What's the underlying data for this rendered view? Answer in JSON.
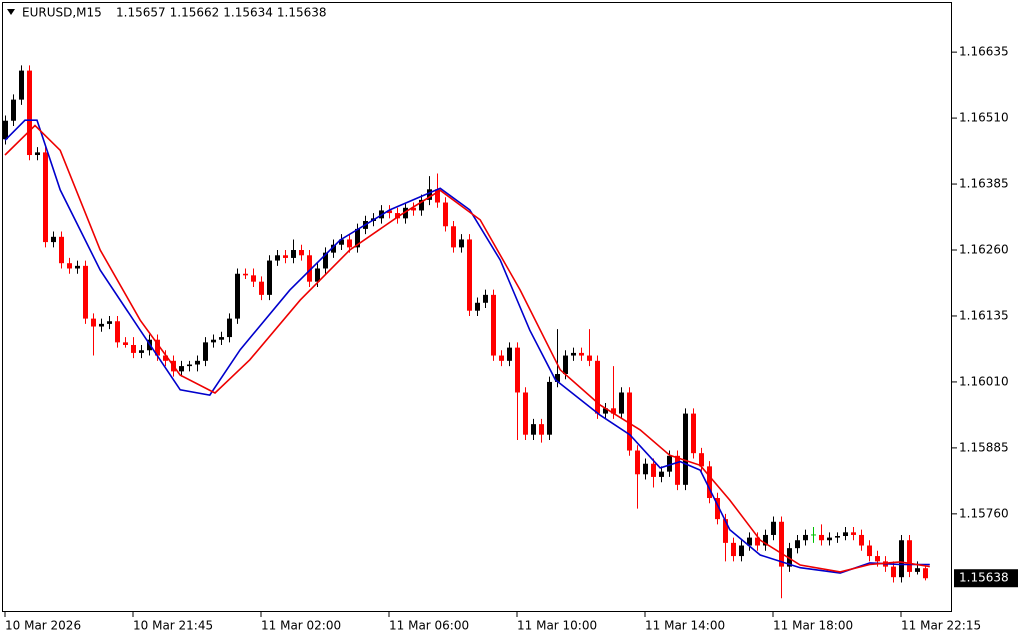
{
  "chart_data": {
    "type": "candlestick",
    "symbol": "EURUSD,M15",
    "up_color": "#000000",
    "down_color": "#ff0000",
    "doji_color": "#00c000",
    "last_price": 1.15638,
    "xlim": [
      -0.375,
      118.375
    ],
    "xticks": [
      {
        "value": 0,
        "label": "10 Mar 2026"
      },
      {
        "value": 16,
        "label": "10 Mar 21:45"
      },
      {
        "value": 32,
        "label": "11 Mar 02:00"
      },
      {
        "value": 48,
        "label": "11 Mar 06:00"
      },
      {
        "value": 64,
        "label": "11 Mar 10:00"
      },
      {
        "value": 80,
        "label": "11 Mar 14:00"
      },
      {
        "value": 96,
        "label": "11 Mar 18:00"
      },
      {
        "value": 112,
        "label": "11 Mar 22:15"
      }
    ],
    "ylim": [
      1.15574,
      1.1673
    ],
    "yticks": [
      1.16635,
      {
        "value": 1.1651,
        "label": "1.16510"
      },
      1.16385,
      {
        "value": 1.1626,
        "label": "1.16260"
      },
      1.16135,
      {
        "value": 1.1601,
        "label": "1.16010"
      },
      1.15885,
      {
        "value": 1.1576,
        "label": "1.15760"
      }
    ],
    "candles": [
      [
        1.1647,
        1.16515,
        1.1646,
        1.16505
      ],
      [
        1.16505,
        1.16555,
        1.16495,
        1.16545
      ],
      [
        1.16545,
        1.1661,
        1.16535,
        1.166
      ],
      [
        1.166,
        1.1661,
        1.1643,
        1.1644
      ],
      [
        1.1644,
        1.16455,
        1.1643,
        1.16445
      ],
      [
        1.16445,
        1.16455,
        1.16265,
        1.16275
      ],
      [
        1.16275,
        1.16295,
        1.16265,
        1.16285
      ],
      [
        1.16285,
        1.16295,
        1.16225,
        1.16235
      ],
      [
        1.16235,
        1.16245,
        1.16215,
        1.16225
      ],
      [
        1.16225,
        1.1624,
        1.16215,
        1.1623
      ],
      [
        1.1623,
        1.1624,
        1.1612,
        1.1613
      ],
      [
        1.1613,
        1.1614,
        1.1606,
        1.16115
      ],
      [
        1.16115,
        1.1613,
        1.16105,
        1.1612
      ],
      [
        1.1612,
        1.16135,
        1.1611,
        1.16125
      ],
      [
        1.16125,
        1.16135,
        1.16075,
        1.16085
      ],
      [
        1.16085,
        1.16095,
        1.16075,
        1.1608
      ],
      [
        1.1608,
        1.16095,
        1.16055,
        1.16065
      ],
      [
        1.16065,
        1.1608,
        1.16055,
        1.1607
      ],
      [
        1.1607,
        1.161,
        1.1606,
        1.1609
      ],
      [
        1.1609,
        1.161,
        1.1605,
        1.1606
      ],
      [
        1.1606,
        1.1607,
        1.1604,
        1.1605
      ],
      [
        1.1605,
        1.1606,
        1.1602,
        1.1603
      ],
      [
        1.1603,
        1.1605,
        1.1602,
        1.1604
      ],
      [
        1.1604,
        1.1605,
        1.1603,
        1.16043
      ],
      [
        1.16043,
        1.1606,
        1.1603,
        1.1605
      ],
      [
        1.1605,
        1.16095,
        1.1604,
        1.16085
      ],
      [
        1.16085,
        1.161,
        1.16075,
        1.1609
      ],
      [
        1.1609,
        1.16105,
        1.1608,
        1.16095
      ],
      [
        1.16095,
        1.1614,
        1.16085,
        1.1613
      ],
      [
        1.1613,
        1.16225,
        1.1612,
        1.16215
      ],
      [
        1.16215,
        1.16225,
        1.16205,
        1.16212
      ],
      [
        1.16212,
        1.16225,
        1.1619,
        1.162
      ],
      [
        1.162,
        1.1621,
        1.16165,
        1.16175
      ],
      [
        1.16175,
        1.1625,
        1.16165,
        1.1624
      ],
      [
        1.1624,
        1.1626,
        1.1623,
        1.1625
      ],
      [
        1.1625,
        1.1626,
        1.16235,
        1.16245
      ],
      [
        1.16245,
        1.1628,
        1.16235,
        1.1626
      ],
      [
        1.1626,
        1.1627,
        1.1624,
        1.1625
      ],
      [
        1.1625,
        1.1626,
        1.1619,
        1.162
      ],
      [
        1.162,
        1.16235,
        1.1619,
        1.16225
      ],
      [
        1.16225,
        1.16265,
        1.16215,
        1.16255
      ],
      [
        1.16255,
        1.1628,
        1.16245,
        1.1627
      ],
      [
        1.1627,
        1.1629,
        1.1626,
        1.1628
      ],
      [
        1.1628,
        1.1629,
        1.16255,
        1.16265
      ],
      [
        1.16265,
        1.1631,
        1.16255,
        1.163
      ],
      [
        1.163,
        1.16325,
        1.1629,
        1.16315
      ],
      [
        1.16315,
        1.1633,
        1.16305,
        1.1632
      ],
      [
        1.1632,
        1.16345,
        1.1631,
        1.16335
      ],
      [
        1.16335,
        1.16345,
        1.1632,
        1.1633
      ],
      [
        1.1633,
        1.1634,
        1.1631,
        1.1632
      ],
      [
        1.1632,
        1.1635,
        1.1631,
        1.1634
      ],
      [
        1.1634,
        1.1635,
        1.16325,
        1.16335
      ],
      [
        1.16335,
        1.16365,
        1.16325,
        1.16355
      ],
      [
        1.16355,
        1.164,
        1.16345,
        1.16375
      ],
      [
        1.16375,
        1.16405,
        1.1634,
        1.1635
      ],
      [
        1.1635,
        1.1636,
        1.16295,
        1.16305
      ],
      [
        1.16305,
        1.16315,
        1.16255,
        1.16265
      ],
      [
        1.16265,
        1.1629,
        1.16255,
        1.1628
      ],
      [
        1.1628,
        1.1629,
        1.16135,
        1.16145
      ],
      [
        1.16145,
        1.1617,
        1.16135,
        1.1616
      ],
      [
        1.1616,
        1.16185,
        1.1615,
        1.16175
      ],
      [
        1.16175,
        1.16185,
        1.1605,
        1.1606
      ],
      [
        1.1606,
        1.1607,
        1.1604,
        1.1605
      ],
      [
        1.1605,
        1.16085,
        1.1604,
        1.16075
      ],
      [
        1.16075,
        1.16085,
        1.159,
        1.1599
      ],
      [
        1.1599,
        1.16,
        1.159,
        1.1591
      ],
      [
        1.1591,
        1.1594,
        1.159,
        1.1593
      ],
      [
        1.1593,
        1.1594,
        1.15895,
        1.1591
      ],
      [
        1.1591,
        1.1602,
        1.159,
        1.1601
      ],
      [
        1.1601,
        1.1611,
        1.16,
        1.16025
      ],
      [
        1.16025,
        1.1607,
        1.16015,
        1.1606
      ],
      [
        1.1606,
        1.16075,
        1.1605,
        1.16065
      ],
      [
        1.16065,
        1.16075,
        1.1605,
        1.1606
      ],
      [
        1.1606,
        1.1611,
        1.1604,
        1.1605
      ],
      [
        1.1605,
        1.1606,
        1.1594,
        1.1595
      ],
      [
        1.1595,
        1.1597,
        1.1594,
        1.1596
      ],
      [
        1.1596,
        1.1604,
        1.1594,
        1.1595
      ],
      [
        1.1595,
        1.16,
        1.1594,
        1.1599
      ],
      [
        1.1599,
        1.16,
        1.1587,
        1.1588
      ],
      [
        1.1588,
        1.1589,
        1.1577,
        1.15835
      ],
      [
        1.15835,
        1.15865,
        1.15825,
        1.15855
      ],
      [
        1.15855,
        1.15865,
        1.1581,
        1.1583
      ],
      [
        1.1583,
        1.1585,
        1.1582,
        1.1584
      ],
      [
        1.1584,
        1.1588,
        1.1583,
        1.1587
      ],
      [
        1.1587,
        1.1588,
        1.15805,
        1.15815
      ],
      [
        1.15815,
        1.1596,
        1.15805,
        1.1595
      ],
      [
        1.1595,
        1.1596,
        1.15865,
        1.15875
      ],
      [
        1.15875,
        1.15885,
        1.1584,
        1.1585
      ],
      [
        1.1585,
        1.1586,
        1.1578,
        1.1579
      ],
      [
        1.1579,
        1.158,
        1.1574,
        1.1575
      ],
      [
        1.1575,
        1.1576,
        1.1567,
        1.15705
      ],
      [
        1.15705,
        1.15715,
        1.1567,
        1.1568
      ],
      [
        1.1568,
        1.1571,
        1.1567,
        1.157
      ],
      [
        1.157,
        1.15725,
        1.1569,
        1.15715
      ],
      [
        1.15715,
        1.15725,
        1.1569,
        1.157
      ],
      [
        1.157,
        1.1573,
        1.1569,
        1.1572
      ],
      [
        1.1572,
        1.15755,
        1.1571,
        1.15745
      ],
      [
        1.15745,
        1.15755,
        1.156,
        1.1566
      ],
      [
        1.1566,
        1.15705,
        1.1565,
        1.15695
      ],
      [
        1.15695,
        1.1572,
        1.15685,
        1.1571
      ],
      [
        1.1571,
        1.1573,
        1.157,
        1.1572
      ],
      [
        1.1572,
        1.15735,
        1.15705,
        1.1572
      ],
      [
        1.1572,
        1.1574,
        1.157,
        1.1571
      ],
      [
        1.1571,
        1.15725,
        1.157,
        1.15715
      ],
      [
        1.15715,
        1.15725,
        1.15705,
        1.15718
      ],
      [
        1.15718,
        1.15735,
        1.1571,
        1.15725
      ],
      [
        1.15725,
        1.15735,
        1.1571,
        1.1572
      ],
      [
        1.1572,
        1.1573,
        1.1569,
        1.157
      ],
      [
        1.157,
        1.1571,
        1.1567,
        1.1568
      ],
      [
        1.1568,
        1.1569,
        1.1566,
        1.1567
      ],
      [
        1.1567,
        1.1568,
        1.1565,
        1.1566
      ],
      [
        1.1566,
        1.1567,
        1.1563,
        1.1564
      ],
      [
        1.1564,
        1.1572,
        1.1563,
        1.1571
      ],
      [
        1.1571,
        1.1572,
        1.1564,
        1.1565
      ],
      [
        1.1565,
        1.1567,
        1.15645,
        1.15657
      ],
      [
        1.15657,
        1.15662,
        1.15634,
        1.15638
      ]
    ],
    "lines": [
      {
        "color": "#0000cc",
        "x": [
          0,
          2.5,
          4,
          6.9,
          11.9,
          16.9,
          21.9,
          25.6,
          29.4,
          35.6,
          41.9,
          48.1,
          54.4,
          58.1,
          61.9,
          65.6,
          68.8,
          74.4,
          78.1,
          81.9,
          84.4,
          86.9,
          90.6,
          94.4,
          99.4,
          104.4,
          108.1,
          111.9,
          115.6
        ],
        "values": [
          1.16468,
          1.16506,
          1.16506,
          1.16374,
          1.16222,
          1.16108,
          1.15995,
          1.15985,
          1.16071,
          1.16184,
          1.16279,
          1.16336,
          1.16377,
          1.16336,
          1.16241,
          1.16108,
          1.16014,
          1.15947,
          1.1591,
          1.15847,
          1.15859,
          1.15843,
          1.1573,
          1.15682,
          1.15658,
          1.15648,
          1.15667,
          1.15664,
          1.15664
        ]
      },
      {
        "color": "#ee0000",
        "x": [
          0,
          3.75,
          6.9,
          11.9,
          16.9,
          21.9,
          26.25,
          30.6,
          36.9,
          43.1,
          49.4,
          54.4,
          59.4,
          64.4,
          69.4,
          74.4,
          79.4,
          83.1,
          86.9,
          90.6,
          94.4,
          99.4,
          104.4,
          108.1,
          111.9,
          115.6
        ],
        "values": [
          1.1644,
          1.16496,
          1.16449,
          1.1626,
          1.16127,
          1.16023,
          1.15989,
          1.16052,
          1.16165,
          1.1626,
          1.16326,
          1.16373,
          1.16317,
          1.16184,
          1.16033,
          1.15966,
          1.15919,
          1.15871,
          1.15852,
          1.15786,
          1.1571,
          1.15663,
          1.1565,
          1.15664,
          1.15669,
          1.1566
        ]
      }
    ]
  }
}
